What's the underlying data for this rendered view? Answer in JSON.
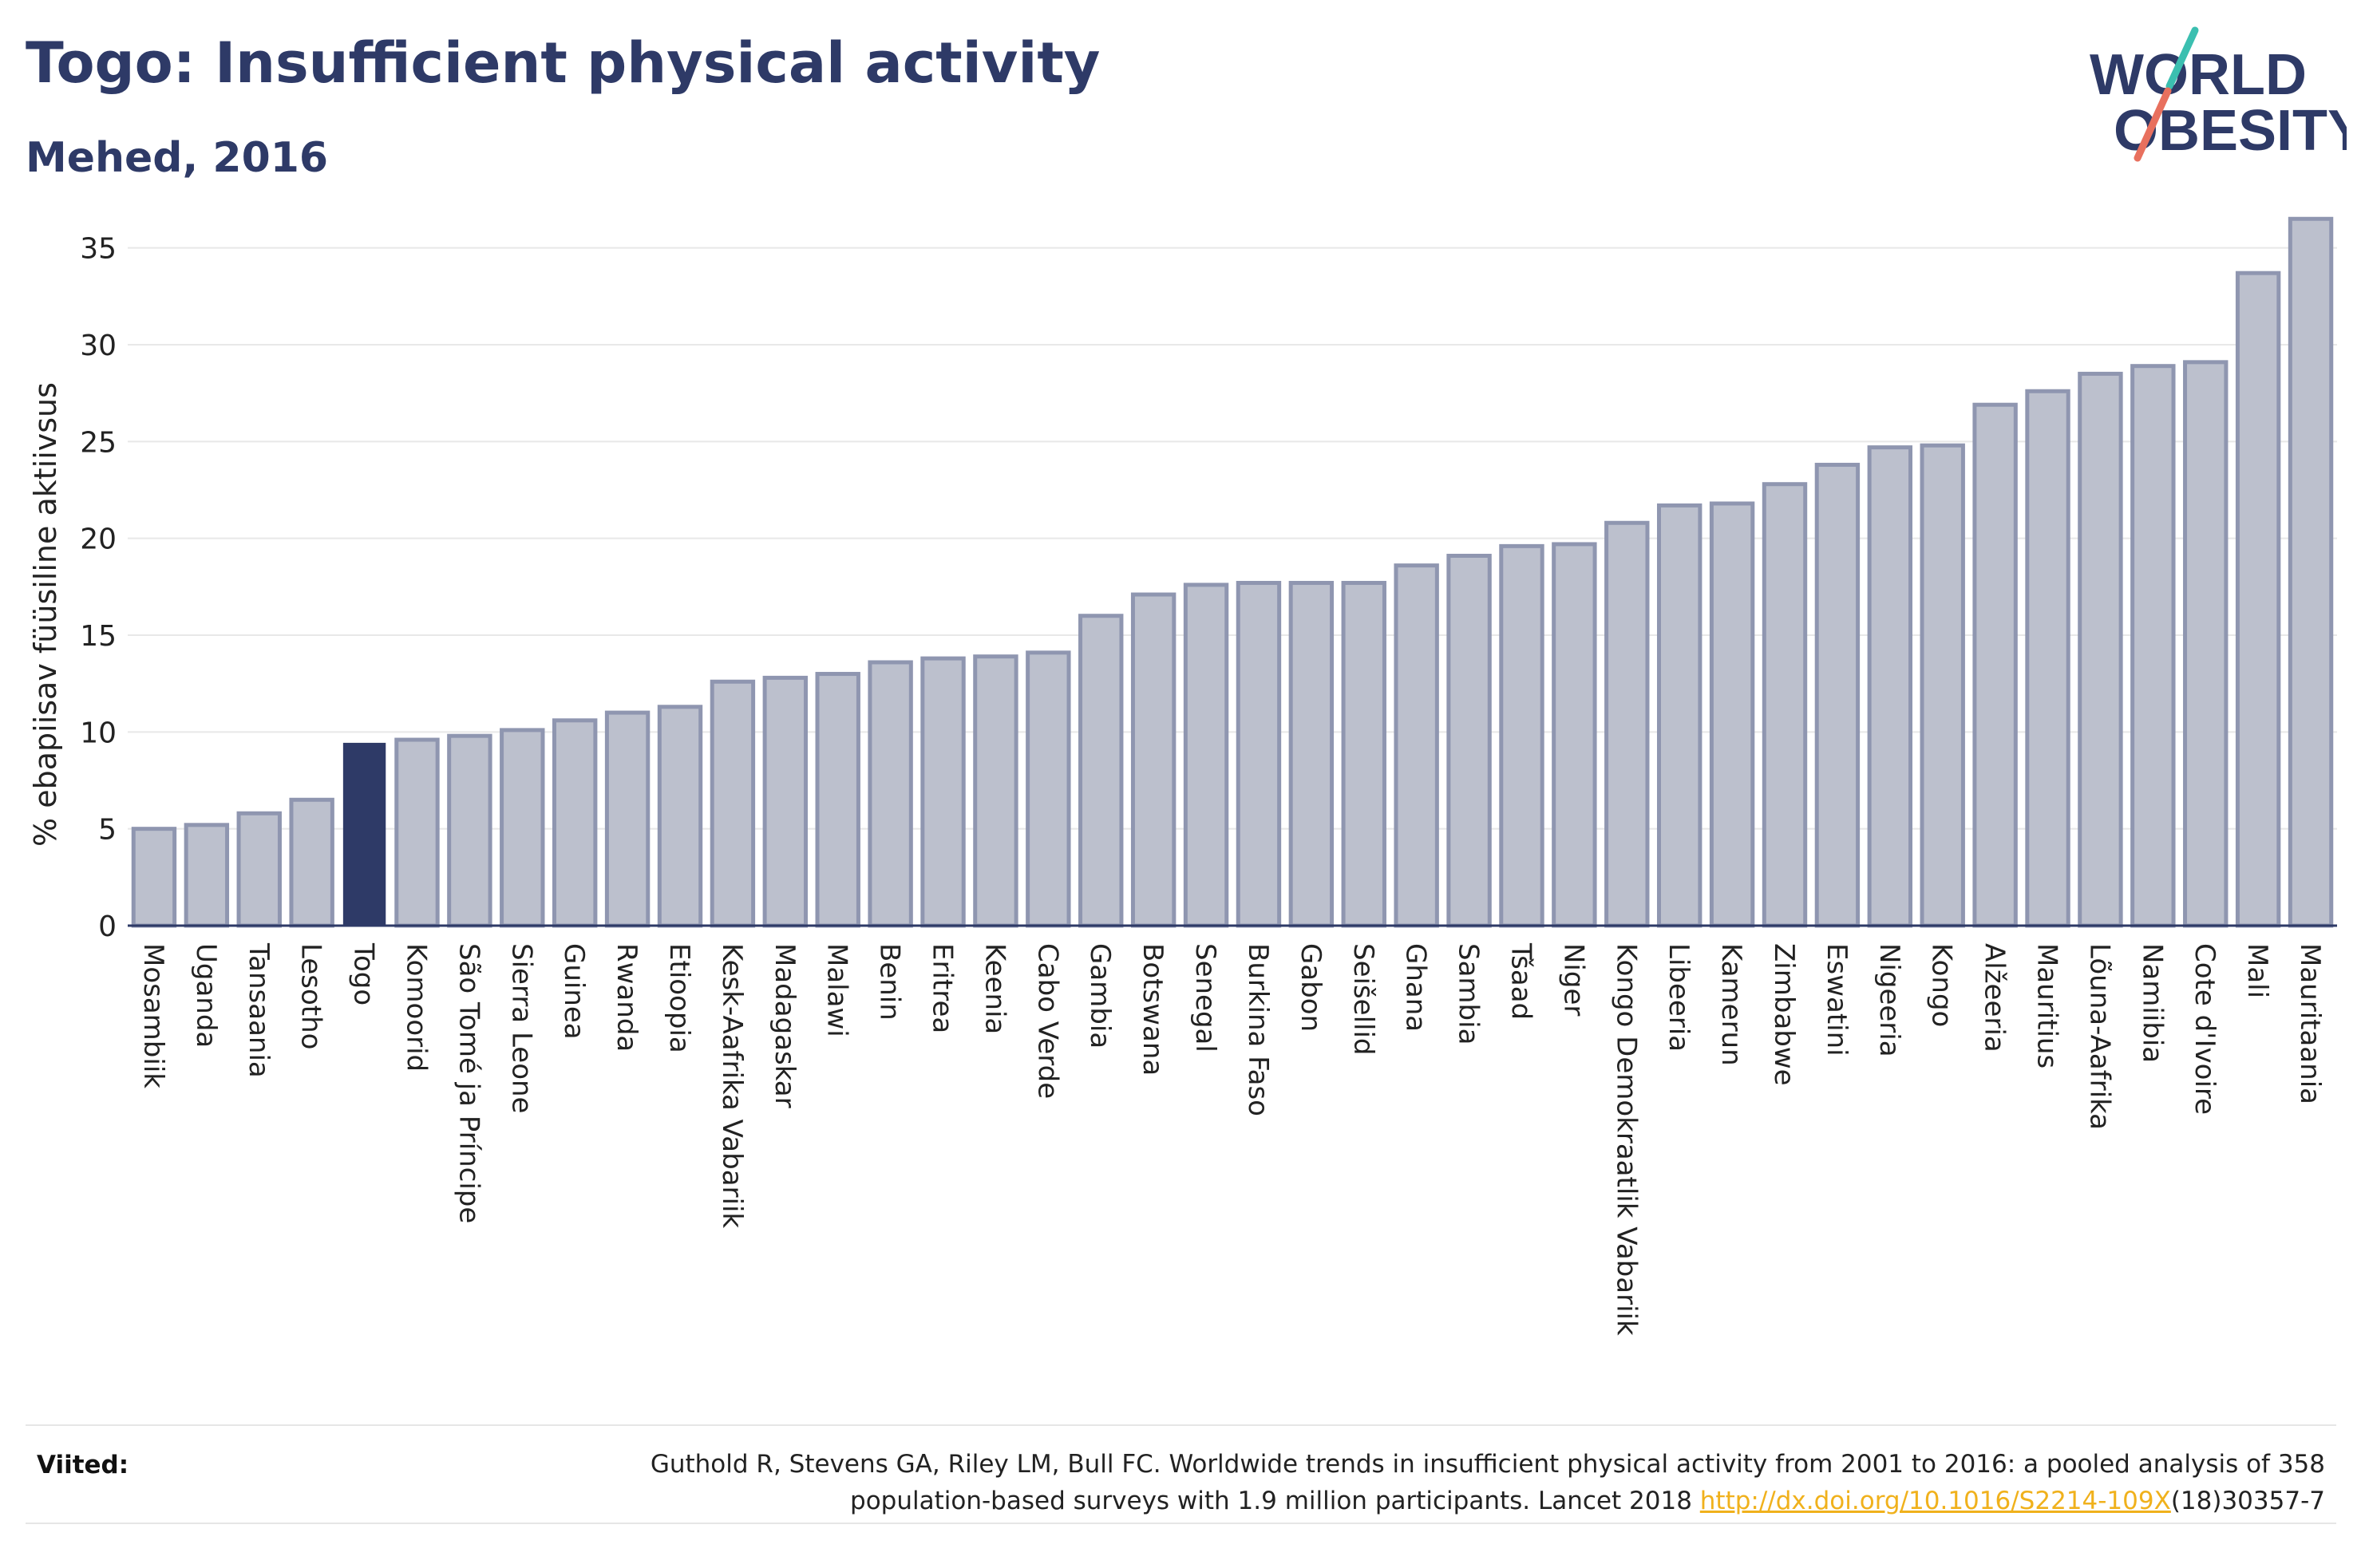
{
  "header": {
    "title": "Togo: Insufficient physical activity",
    "subtitle": "Mehed, 2016"
  },
  "logo": {
    "line1": "WORLD",
    "line2": "OBESITY",
    "text_color": "#2e3a67",
    "slash_top_color": "#3bbfb0",
    "slash_bottom_color": "#e8705e"
  },
  "colors": {
    "bar_fill": "#bcc0cd",
    "bar_stroke": "#8f96b0",
    "highlight_fill": "#2e3a67",
    "axis_text": "#222222",
    "grid": "#e8e8e8",
    "baseline": "#2e3a67"
  },
  "chart_data": {
    "type": "bar",
    "title": "Togo: Insufficient physical activity",
    "subtitle": "Mehed, 2016",
    "xlabel": "",
    "ylabel": "% ebapiisav füüsiline aktiivsus",
    "ylim": [
      0,
      37.5
    ],
    "yticks": [
      0,
      5,
      10,
      15,
      20,
      25,
      30,
      35
    ],
    "grid": true,
    "highlight": "Togo",
    "categories": [
      "Mosambiik",
      "Uganda",
      "Tansaania",
      "Lesotho",
      "Togo",
      "Komoorid",
      "São Tomé ja Príncipe",
      "Sierra Leone",
      "Guinea",
      "Rwanda",
      "Etioopia",
      "Kesk-Aafrika Vabariik",
      "Madagaskar",
      "Malawi",
      "Benin",
      "Eritrea",
      "Keenia",
      "Cabo Verde",
      "Gambia",
      "Botswana",
      "Senegal",
      "Burkina Faso",
      "Gabon",
      "Seišellid",
      "Ghana",
      "Sambia",
      "Tšaad",
      "Niger",
      "Kongo Demokraatlik Vabariik",
      "Libeeria",
      "Kamerun",
      "Zimbabwe",
      "Eswatini",
      "Nigeeria",
      "Kongo",
      "Alžeeria",
      "Mauritius",
      "Lõuna-Aafrika",
      "Namiibia",
      "Cote d'Ivoire",
      "Mali",
      "Mauritaania"
    ],
    "values": [
      5.0,
      5.2,
      5.8,
      6.5,
      9.4,
      9.6,
      9.8,
      10.1,
      10.6,
      11.0,
      11.3,
      12.6,
      12.8,
      13.0,
      13.6,
      13.8,
      13.9,
      14.1,
      16.0,
      17.1,
      17.6,
      17.7,
      17.7,
      17.7,
      18.6,
      19.1,
      19.6,
      19.7,
      20.8,
      21.7,
      21.8,
      22.8,
      23.8,
      24.7,
      24.8,
      26.9,
      27.6,
      28.5,
      28.9,
      29.1,
      33.7,
      36.5
    ]
  },
  "footer": {
    "label": "Viited:",
    "source_line1": "Guthold R, Stevens GA, Riley LM, Bull FC. Worldwide trends in insufficient physical activity from 2001 to 2016: a pooled analysis of 358",
    "source_line2_prefix": "population-based surveys with 1.9 million participants. Lancet 2018 ",
    "source_link": "http://dx.doi.org/10.1016/S2214-109X",
    "source_line2_suffix": "(18)30357-7"
  }
}
